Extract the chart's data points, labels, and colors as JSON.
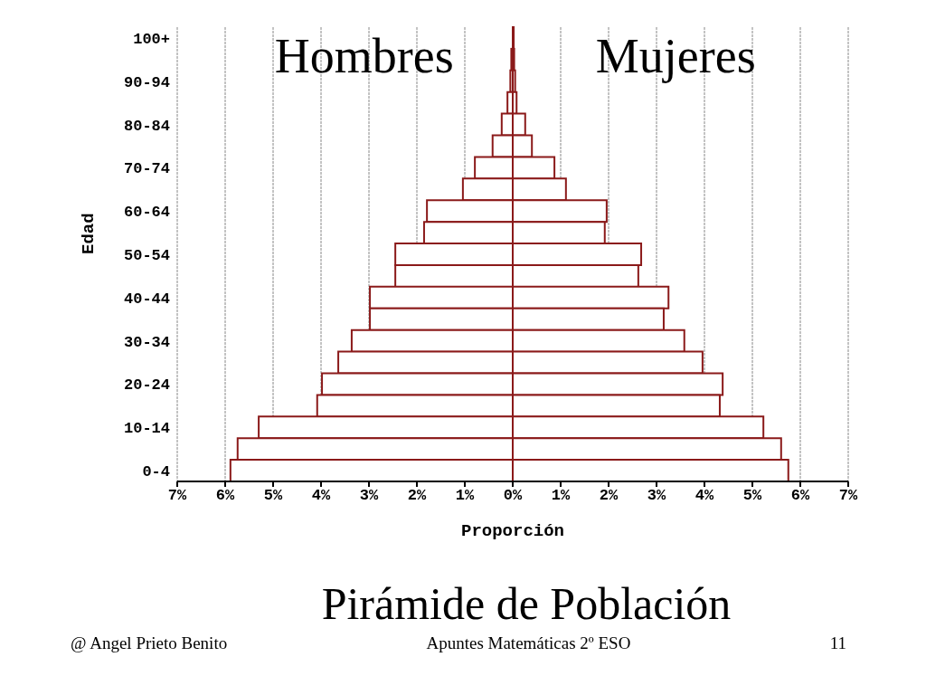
{
  "chart_data": {
    "type": "bar",
    "orientation": "horizontal",
    "stacked": true,
    "title": "Pirámide de Población",
    "xlabel": "Proporción",
    "ylabel": "Edad",
    "categories": [
      "100+",
      null,
      "90-94",
      null,
      "80-84",
      null,
      "70-74",
      null,
      "60-64",
      null,
      "50-54",
      null,
      "40-44",
      null,
      "30-34",
      null,
      "20-24",
      null,
      "10-14",
      null,
      "0-4"
    ],
    "series": [
      {
        "name": "Hombres",
        "color": "#8b1a1a",
        "values": [
          null,
          -0.03,
          -0.05,
          -0.11,
          -0.23,
          -0.42,
          -0.79,
          -1.04,
          -1.79,
          -1.85,
          -2.45,
          -2.45,
          -2.98,
          -2.98,
          -3.36,
          -3.64,
          -3.98,
          -4.08,
          -5.3,
          -5.74,
          -5.89
        ]
      },
      {
        "name": "Mujeres",
        "color": "#8b1a1a",
        "values": [
          0.02,
          0.03,
          0.05,
          0.08,
          0.26,
          0.4,
          0.87,
          1.11,
          1.96,
          1.92,
          2.68,
          2.62,
          3.25,
          3.15,
          3.58,
          3.96,
          4.38,
          4.32,
          5.23,
          5.6,
          5.75
        ]
      }
    ],
    "xlim": [
      -7,
      7
    ],
    "xticks": [
      {
        "value": -7,
        "label": "7%"
      },
      {
        "value": -6,
        "label": "6%"
      },
      {
        "value": -5,
        "label": "5%"
      },
      {
        "value": -4,
        "label": "4%"
      },
      {
        "value": -3,
        "label": "3%"
      },
      {
        "value": -2,
        "label": "2%"
      },
      {
        "value": -1,
        "label": "1%"
      },
      {
        "value": 0,
        "label": "0%"
      },
      {
        "value": 1,
        "label": "1%"
      },
      {
        "value": 2,
        "label": "2%"
      },
      {
        "value": 3,
        "label": "3%"
      },
      {
        "value": 4,
        "label": "4%"
      },
      {
        "value": 5,
        "label": "5%"
      },
      {
        "value": 6,
        "label": "6%"
      },
      {
        "value": 7,
        "label": "7%"
      }
    ],
    "grid": "x",
    "legend": false,
    "annotations": [
      "@ Angel Prieto Benito",
      "Apuntes Matemáticas 2º ESO",
      "11"
    ]
  }
}
